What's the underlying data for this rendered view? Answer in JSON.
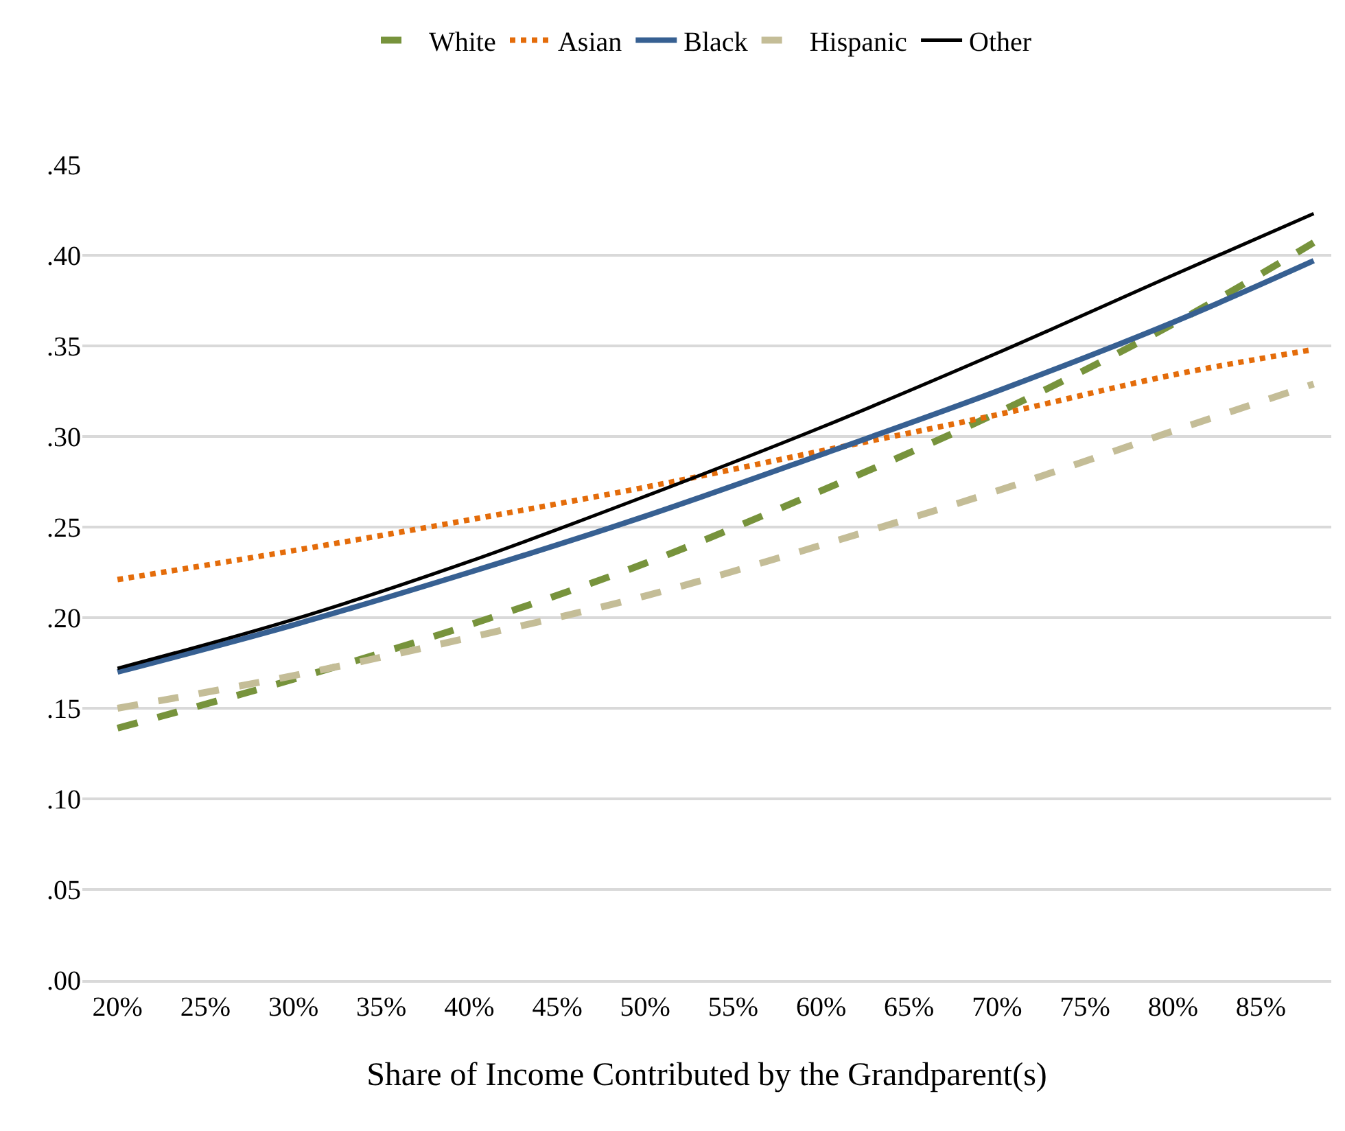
{
  "chart_data": {
    "type": "line",
    "xlabel": "Share of Income Contributed by the Grandparent(s)",
    "x": [
      20,
      30,
      40,
      50,
      60,
      70,
      80,
      88
    ],
    "series": [
      {
        "name": "White",
        "color": "#77933c",
        "line_style": "dashed",
        "values": [
          0.139,
          0.166,
          0.196,
          0.23,
          0.27,
          0.313,
          0.362,
          0.407
        ]
      },
      {
        "name": "Asian",
        "color": "#e46c0a",
        "line_style": "dotted",
        "values": [
          0.221,
          0.237,
          0.254,
          0.272,
          0.292,
          0.312,
          0.334,
          0.348
        ]
      },
      {
        "name": "Black",
        "color": "#376092",
        "line_style": "solid",
        "values": [
          0.17,
          0.196,
          0.225,
          0.256,
          0.29,
          0.325,
          0.363,
          0.397
        ]
      },
      {
        "name": "Hispanic",
        "color": "#c4bd97",
        "line_style": "dashed",
        "values": [
          0.15,
          0.168,
          0.189,
          0.212,
          0.24,
          0.27,
          0.303,
          0.329
        ]
      },
      {
        "name": "Other",
        "color": "#000000",
        "line_style": "solid",
        "values": [
          0.172,
          0.199,
          0.231,
          0.267,
          0.305,
          0.346,
          0.389,
          0.423
        ]
      }
    ],
    "xlim": [
      18,
      89
    ],
    "xticks": [
      {
        "value": 20,
        "label": "20%"
      },
      {
        "value": 25,
        "label": "25%"
      },
      {
        "value": 30,
        "label": "30%"
      },
      {
        "value": 35,
        "label": "35%"
      },
      {
        "value": 40,
        "label": "40%"
      },
      {
        "value": 45,
        "label": "45%"
      },
      {
        "value": 50,
        "label": "50%"
      },
      {
        "value": 55,
        "label": "55%"
      },
      {
        "value": 60,
        "label": "60%"
      },
      {
        "value": 65,
        "label": "65%"
      },
      {
        "value": 70,
        "label": "70%"
      },
      {
        "value": 75,
        "label": "75%"
      },
      {
        "value": 80,
        "label": "80%"
      },
      {
        "value": 85,
        "label": "85%"
      }
    ],
    "ylim": [
      0,
      0.45
    ],
    "yticks": [
      {
        "value": 0,
        "label": ".00"
      },
      {
        "value": 0.05,
        "label": ".05"
      },
      {
        "value": 0.1,
        "label": ".10"
      },
      {
        "value": 0.15,
        "label": ".15"
      },
      {
        "value": 0.2,
        "label": ".20"
      },
      {
        "value": 0.25,
        "label": ".25"
      },
      {
        "value": 0.3,
        "label": ".30"
      },
      {
        "value": 0.35,
        "label": ".35"
      },
      {
        "value": 0.4,
        "label": ".40"
      },
      {
        "value": 0.45,
        "label": ".45"
      }
    ],
    "grid": "y",
    "legend": "top",
    "marker": "none"
  }
}
